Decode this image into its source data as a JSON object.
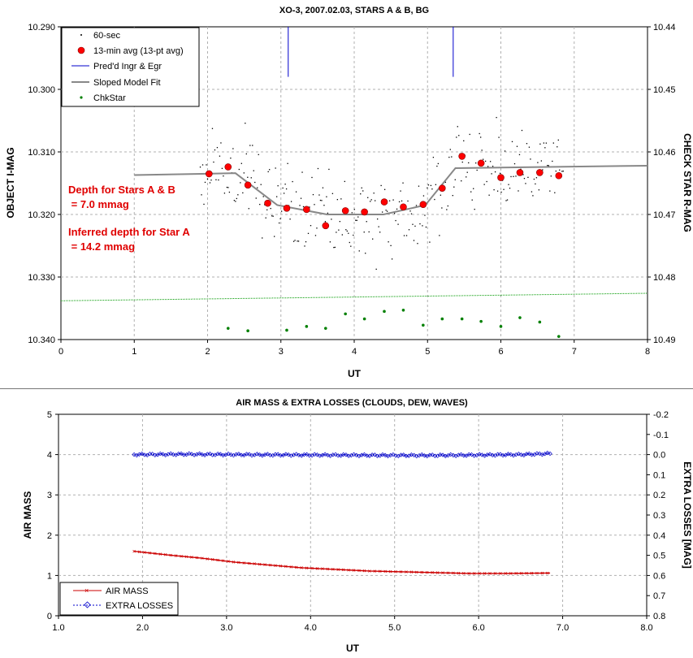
{
  "chart_data": [
    {
      "type": "scatter",
      "title": "XO-3, 2007.02.03, STARS A & B, BG",
      "xlabel": "UT",
      "ylabel": "OBJECT I-MAG",
      "y2label": "CHECK STAR R-MAG",
      "xlim": [
        0,
        8
      ],
      "ylim": [
        10.29,
        10.34
      ],
      "y_inverted": true,
      "y2lim": [
        10.44,
        10.49
      ],
      "x_ticks": [
        "0",
        "1",
        "2",
        "3",
        "4",
        "5",
        "6",
        "7",
        "8"
      ],
      "y_ticks": [
        "10.290",
        "10.300",
        "10.310",
        "10.320",
        "10.330",
        "10.340"
      ],
      "y2_ticks": [
        "10.44",
        "10.45",
        "10.46",
        "10.47",
        "10.48",
        "10.49"
      ],
      "grid": true,
      "legend_position": "top-left",
      "legend": [
        {
          "label": "60-sec",
          "color": "#000000",
          "marker": "dot"
        },
        {
          "label": "13-min avg (13-pt avg)",
          "color": "#ff0000",
          "marker": "circle"
        },
        {
          "label": "Pred'd Ingr & Egr",
          "color": "#0000cc",
          "marker": "line"
        },
        {
          "label": "Sloped Model Fit",
          "color": "#888888",
          "marker": "thickline"
        },
        {
          "label": "ChkStar",
          "color": "#008000",
          "marker": "smalldot"
        }
      ],
      "annotations": [
        {
          "lines": [
            "Depth for Stars A & B",
            " = 7.0 mmag"
          ],
          "color": "#e00000"
        },
        {
          "lines": [
            "Inferred depth for Star A",
            " = 14.2 mmag"
          ],
          "color": "#e00000"
        }
      ],
      "series": [
        {
          "name": "13-min avg (13-pt avg)",
          "color": "#ff0000",
          "x": [
            2.02,
            2.28,
            2.55,
            2.82,
            3.08,
            3.35,
            3.61,
            3.88,
            4.14,
            4.41,
            4.67,
            4.94,
            5.2,
            5.47,
            5.73,
            6.0,
            6.26,
            6.53,
            6.79
          ],
          "y": [
            10.3135,
            10.3124,
            10.3153,
            10.3182,
            10.319,
            10.3192,
            10.3218,
            10.3194,
            10.3196,
            10.318,
            10.3188,
            10.3184,
            10.3158,
            10.3107,
            10.3118,
            10.3141,
            10.3133,
            10.3133,
            10.3138
          ]
        },
        {
          "name": "Sloped Model Fit",
          "color": "#888888",
          "x": [
            1.0,
            2.38,
            2.95,
            3.63,
            4.4,
            4.97,
            5.38,
            8.0
          ],
          "y": [
            10.3137,
            10.3134,
            10.3185,
            10.32,
            10.32,
            10.3185,
            10.3126,
            10.3122
          ]
        },
        {
          "name": "Pred'd Ingr & Egr",
          "color": "#0000cc",
          "x": [
            3.1,
            5.35
          ],
          "y_top": 10.29,
          "y_bottom": 10.298
        },
        {
          "name": "ChkStar",
          "color": "#008000",
          "axis": "y2",
          "x": [
            2.28,
            2.55,
            3.08,
            3.35,
            3.61,
            3.88,
            4.14,
            4.41,
            4.67,
            4.94,
            5.2,
            5.47,
            5.73,
            6.0,
            6.26,
            6.53,
            6.79
          ],
          "y": [
            10.4882,
            10.4886,
            10.4885,
            10.4879,
            10.4882,
            10.4859,
            10.4867,
            10.4855,
            10.4853,
            10.4877,
            10.4867,
            10.4867,
            10.4871,
            10.4879,
            10.4865,
            10.4872,
            10.4895
          ]
        },
        {
          "name": "ChkStar trend",
          "color": "#009900",
          "axis": "y2",
          "x": [
            0.0,
            8.0
          ],
          "y": [
            10.4838,
            10.4826
          ]
        },
        {
          "name": "60-sec",
          "color": "#000000",
          "generated_like": true,
          "x_range": [
            1.9,
            6.85
          ],
          "scatter_sd": 0.0035
        }
      ]
    },
    {
      "type": "line",
      "title": "AIR MASS & EXTRA LOSSES (CLOUDS, DEW, WAVES)",
      "xlabel": "UT",
      "ylabel": "AIR MASS",
      "y2label": "EXTRA LOSSES [MAG]",
      "xlim": [
        1.0,
        8.0
      ],
      "ylim": [
        0,
        5
      ],
      "y2lim": [
        -0.2,
        0.8
      ],
      "y2_inverted": true,
      "x_ticks": [
        "1.0",
        "2.0",
        "3.0",
        "4.0",
        "5.0",
        "6.0",
        "7.0",
        "8.0"
      ],
      "y_ticks": [
        "0",
        "1",
        "2",
        "3",
        "4",
        "5"
      ],
      "y2_ticks": [
        "-0.2",
        "-0.1",
        "0.0",
        "0.1",
        "0.2",
        "0.3",
        "0.4",
        "0.5",
        "0.6",
        "0.7",
        "0.8"
      ],
      "grid": true,
      "legend_position": "bottom-left",
      "legend": [
        {
          "label": "AIR MASS",
          "color": "#cc0000",
          "marker": "cross-line"
        },
        {
          "label": "EXTRA LOSSES",
          "color": "#0000cc",
          "marker": "diamond-dash"
        }
      ],
      "series": [
        {
          "name": "AIR MASS",
          "color": "#cc0000",
          "x": [
            1.9,
            2.3,
            2.7,
            3.1,
            3.5,
            3.9,
            4.3,
            4.7,
            5.1,
            5.5,
            5.9,
            6.3,
            6.85
          ],
          "y": [
            1.6,
            1.51,
            1.43,
            1.33,
            1.26,
            1.19,
            1.15,
            1.11,
            1.09,
            1.07,
            1.05,
            1.05,
            1.06
          ]
        },
        {
          "name": "EXTRA LOSSES",
          "color": "#0000cc",
          "axis": "y2",
          "x": [
            1.9,
            2.5,
            3.0,
            3.5,
            4.0,
            4.5,
            5.0,
            5.5,
            6.0,
            6.5,
            6.85
          ],
          "y": [
            0.0,
            -0.002,
            0.0,
            0.001,
            0.002,
            0.003,
            0.004,
            0.004,
            0.002,
            0.0,
            -0.005
          ]
        }
      ]
    }
  ]
}
